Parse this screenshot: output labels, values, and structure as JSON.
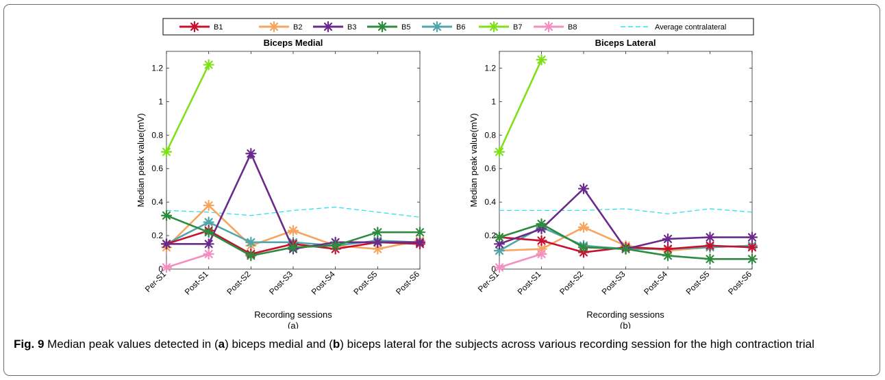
{
  "legend": {
    "entries": [
      {
        "label": "B1",
        "color": "#c8102e",
        "style": "marker"
      },
      {
        "label": "B2",
        "color": "#f6a55e",
        "style": "marker"
      },
      {
        "label": "B3",
        "color": "#6a2a8c",
        "style": "marker"
      },
      {
        "label": "B5",
        "color": "#2e8b3e",
        "style": "marker"
      },
      {
        "label": "B6",
        "color": "#4fa6a8",
        "style": "marker"
      },
      {
        "label": "B7",
        "color": "#7fe01a",
        "style": "marker"
      },
      {
        "label": "B8",
        "color": "#f28ec0",
        "style": "marker"
      },
      {
        "label": "Average contralateral",
        "color": "#2fe0f0",
        "style": "dashed"
      }
    ]
  },
  "caption": {
    "label": "Fig. 9",
    "p1": " Median peak values detected in (",
    "a": "a",
    "p2": ") biceps medial and (",
    "b": "b",
    "p3": ") biceps lateral for the subjects across various recording session for the high contraction trial"
  },
  "chart_data": [
    {
      "type": "line",
      "title": "Biceps Medial",
      "subtitle": "(a)",
      "xlabel": "Recording sessions",
      "ylabel": "Median peak value(mV)",
      "categories": [
        "Per-S1",
        "Post-S1",
        "Post-S2",
        "Post-S3",
        "Post-S4",
        "Post-S5",
        "Post-S6"
      ],
      "ylim": [
        0,
        1.3
      ],
      "yticks": [
        0,
        0.2,
        0.4,
        0.6,
        0.8,
        1,
        1.2
      ],
      "ytick_labels": [
        "0",
        "0.2",
        "0.4",
        "0.6",
        "0.8",
        "1",
        "1.2"
      ],
      "series": [
        {
          "name": "B2",
          "color": "#f6a55e",
          "values": [
            0.13,
            0.38,
            0.14,
            0.23,
            0.14,
            0.12,
            0.17
          ]
        },
        {
          "name": "B6",
          "color": "#4fa6a8",
          "values": [
            0.15,
            0.28,
            0.16,
            0.16,
            0.14,
            0.17,
            0.16
          ]
        },
        {
          "name": "B1",
          "color": "#c8102e",
          "values": [
            0.15,
            0.23,
            0.09,
            0.15,
            0.12,
            0.16,
            0.15
          ]
        },
        {
          "name": "B3",
          "color": "#6a2a8c",
          "values": [
            0.15,
            0.15,
            0.69,
            0.12,
            0.16,
            0.16,
            0.16
          ]
        },
        {
          "name": "B5",
          "color": "#2e8b3e",
          "values": [
            0.32,
            0.22,
            0.08,
            0.13,
            0.14,
            0.22,
            0.22
          ]
        },
        {
          "name": "B7",
          "color": "#7fe01a",
          "values": [
            0.7,
            1.22,
            null,
            null,
            null,
            null,
            null
          ]
        },
        {
          "name": "B8",
          "color": "#f28ec0",
          "values": [
            0.01,
            0.09,
            null,
            null,
            null,
            null,
            null
          ]
        }
      ],
      "average_contralateral": [
        0.35,
        0.34,
        0.32,
        0.35,
        0.37,
        0.34,
        0.31
      ]
    },
    {
      "type": "line",
      "title": "Biceps Lateral",
      "subtitle": "(b)",
      "xlabel": "Recording sessions",
      "ylabel": "Median peak value(mV)",
      "categories": [
        "Per-S1",
        "Post-S1",
        "Post-S2",
        "Post-S3",
        "Post-S4",
        "Post-S5",
        "Post-S6"
      ],
      "ylim": [
        0,
        1.3
      ],
      "yticks": [
        0,
        0.2,
        0.4,
        0.6,
        0.8,
        1,
        1.2
      ],
      "ytick_labels": [
        "0",
        "0.2",
        "0.4",
        "0.6",
        "0.8",
        "1",
        "1.2"
      ],
      "series": [
        {
          "name": "B2",
          "color": "#f6a55e",
          "values": [
            0.11,
            0.12,
            0.25,
            0.14,
            0.11,
            0.13,
            0.14
          ]
        },
        {
          "name": "B6",
          "color": "#4fa6a8",
          "values": [
            0.11,
            0.25,
            0.14,
            0.12,
            0.12,
            0.13,
            0.14
          ]
        },
        {
          "name": "B1",
          "color": "#c8102e",
          "values": [
            0.19,
            0.17,
            0.1,
            0.13,
            0.12,
            0.14,
            0.13
          ]
        },
        {
          "name": "B3",
          "color": "#6a2a8c",
          "values": [
            0.15,
            0.24,
            0.48,
            0.12,
            0.18,
            0.19,
            0.19
          ]
        },
        {
          "name": "B5",
          "color": "#2e8b3e",
          "values": [
            0.19,
            0.27,
            0.13,
            0.12,
            0.08,
            0.06,
            0.06
          ]
        },
        {
          "name": "B7",
          "color": "#7fe01a",
          "values": [
            0.7,
            1.25,
            null,
            null,
            null,
            null,
            null
          ]
        },
        {
          "name": "B8",
          "color": "#f28ec0",
          "values": [
            0.01,
            0.09,
            null,
            null,
            null,
            null,
            null
          ]
        }
      ],
      "average_contralateral": [
        0.35,
        0.35,
        0.35,
        0.36,
        0.33,
        0.36,
        0.34
      ]
    }
  ]
}
